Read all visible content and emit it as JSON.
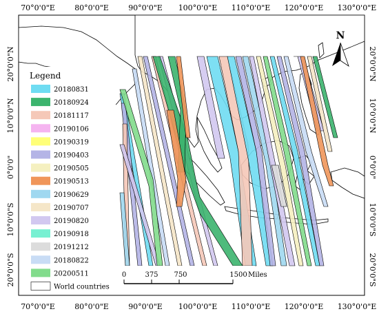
{
  "axes": {
    "top_labels": [
      "70°0'0\"E",
      "80°0'0\"E",
      "90°0'0\"E",
      "100°0'0\"E",
      "110°0'0\"E",
      "120°0'0\"E",
      "130°0'0\"E"
    ],
    "bottom_labels": [
      "70°0'0\"E",
      "80°0'0\"E",
      "90°0'0\"E",
      "100°0'0\"E",
      "110°0'0\"E",
      "120°0'0\"E",
      "130°0'0\"E"
    ],
    "left_labels": [
      "20°0'0\"N",
      "10°0'0\"N",
      "0°0'0\"",
      "10°0'0\"S",
      "20°0'0\"S"
    ],
    "right_labels": [
      "20°0'0\"N",
      "10°0'0\"N",
      "0°0'0\"",
      "10°0'0\"S",
      "20°0'0\"S"
    ]
  },
  "legend": {
    "title": "Legend",
    "items": [
      {
        "label": "20180831",
        "color": "#6fdcf2"
      },
      {
        "label": "20180924",
        "color": "#3cb46e"
      },
      {
        "label": "20181117",
        "color": "#f5c8b8"
      },
      {
        "label": "20190106",
        "color": "#f5b4f0"
      },
      {
        "label": "20190319",
        "color": "#ffff78"
      },
      {
        "label": "20190403",
        "color": "#b4b4e6"
      },
      {
        "label": "20190505",
        "color": "#f5f0c0"
      },
      {
        "label": "20190513",
        "color": "#f0965a"
      },
      {
        "label": "20190629",
        "color": "#a0d8f0"
      },
      {
        "label": "20190707",
        "color": "#f5e6c8"
      },
      {
        "label": "20190820",
        "color": "#d2c8f0"
      },
      {
        "label": "20190918",
        "color": "#78f0d2"
      },
      {
        "label": "20191212",
        "color": "#dcdcdc"
      },
      {
        "label": "20180822",
        "color": "#c8dcf5"
      },
      {
        "label": "20200511",
        "color": "#82dc8c"
      },
      {
        "label": "World countries",
        "color": "#ffffff"
      }
    ]
  },
  "scalebar": {
    "ticks": [
      "0",
      "375",
      "750",
      "1500"
    ],
    "unit": "Miles"
  },
  "north_arrow": {
    "label": "N"
  }
}
